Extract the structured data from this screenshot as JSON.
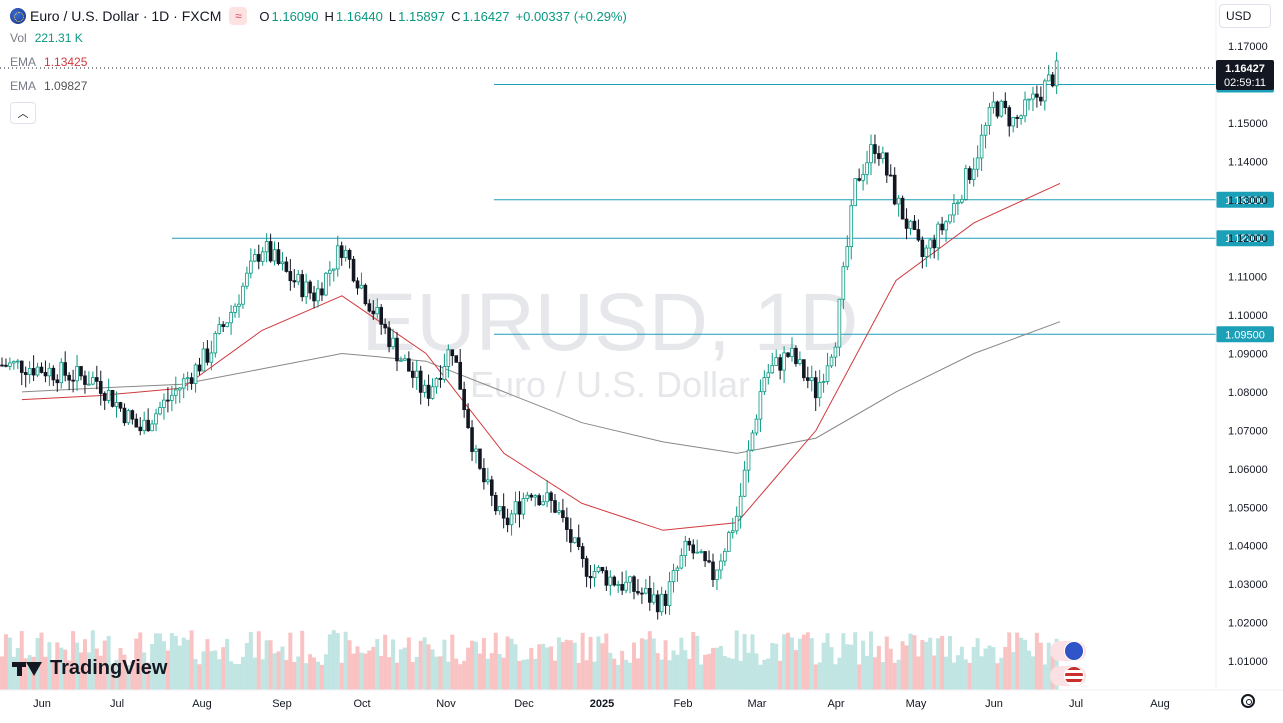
{
  "header": {
    "symbol_title": "Euro / U.S. Dollar · 1D · FXCM",
    "open_label": "O",
    "open": "1.16090",
    "high_label": "H",
    "high": "1.16440",
    "low_label": "L",
    "low": "1.15897",
    "close_label": "C",
    "close": "1.16427",
    "change": "+0.00337 (+0.29%)"
  },
  "indicators": {
    "vol_label": "Vol",
    "vol_value": "221.31 K",
    "ema1_label": "EMA",
    "ema1_value": "1.13425",
    "ema2_label": "EMA",
    "ema2_value": "1.09827"
  },
  "currency_button": "USD",
  "watermark": {
    "line1": "EURUSD, 1D",
    "line2": "Euro / U.S. Dollar"
  },
  "brand": "TradingView",
  "price_label": {
    "value": "1.16427",
    "countdown": "02:59:11"
  },
  "horizontal_levels": [
    {
      "text": "1.16000",
      "value": 1.16,
      "start_month": "Dec"
    },
    {
      "text": "1.13000",
      "value": 1.13,
      "start_month": "Dec"
    },
    {
      "text": "1.12000",
      "value": 1.12,
      "start_month": "Aug"
    },
    {
      "text": "1.09500",
      "value": 1.095,
      "start_month": "Dec"
    }
  ],
  "icons": {
    "symbol": "euro-globe-icon",
    "indicator": "waves-icon",
    "collapse": "chevron-up-icon",
    "settings": "gear-icon",
    "flag_eu": "eu-flag-icon",
    "flag_us": "us-flag-icon"
  },
  "colors": {
    "up": "#089981",
    "down": "#131722",
    "ema_fast": "#d1393e",
    "ema_slow": "#888888",
    "level_line": "#1ba0b8",
    "level_label": "#1ba0b8",
    "price_label": "#131722",
    "volume_up": "#b2dfdb",
    "volume_down": "#f7b4b4"
  },
  "chart_data": {
    "type": "candlestick",
    "timeframe": "1D",
    "y_axis": {
      "ticks": [
        "1.17000",
        "1.16000",
        "1.15000",
        "1.14000",
        "1.13000",
        "1.12000",
        "1.11000",
        "1.10000",
        "1.09000",
        "1.08000",
        "1.07000",
        "1.06000",
        "1.05000",
        "1.04000",
        "1.03000",
        "1.02000",
        "1.01000"
      ],
      "range": [
        1.003,
        1.173
      ]
    },
    "x_axis": {
      "ticks": [
        "Jun",
        "Jul",
        "Aug",
        "Sep",
        "Oct",
        "Nov",
        "Dec",
        "2025",
        "Feb",
        "Mar",
        "Apr",
        "May",
        "Jun",
        "Jul",
        "Aug"
      ]
    },
    "close_path": [
      [
        "Jun",
        1.087
      ],
      [
        "Jul",
        1.083
      ],
      [
        "Jul",
        1.07
      ],
      [
        "Aug",
        1.082
      ],
      [
        "Aug",
        1.09
      ],
      [
        "Aug",
        1.103
      ],
      [
        "Sep",
        1.118
      ],
      [
        "Sep",
        1.11
      ],
      [
        "Sep",
        1.105
      ],
      [
        "Oct",
        1.118
      ],
      [
        "Oct",
        1.103
      ],
      [
        "Oct",
        1.09
      ],
      [
        "Nov",
        1.079
      ],
      [
        "Nov",
        1.092
      ],
      [
        "Nov",
        1.06
      ],
      [
        "Dec",
        1.045
      ],
      [
        "Dec",
        1.055
      ],
      [
        "Dec",
        1.05
      ],
      [
        "2025",
        1.035
      ],
      [
        "2025",
        1.03
      ],
      [
        "Feb",
        1.025
      ],
      [
        "Feb",
        1.04
      ],
      [
        "Feb",
        1.032
      ],
      [
        "Mar",
        1.048
      ],
      [
        "Mar",
        1.084
      ],
      [
        "Mar",
        1.09
      ],
      [
        "Apr",
        1.08
      ],
      [
        "Apr",
        1.095
      ],
      [
        "Apr",
        1.135
      ],
      [
        "Apr",
        1.145
      ],
      [
        "May",
        1.13
      ],
      [
        "May",
        1.115
      ],
      [
        "May",
        1.125
      ],
      [
        "Jun",
        1.14
      ],
      [
        "Jun",
        1.155
      ],
      [
        "Jun",
        1.15
      ],
      [
        "Jun",
        1.16427
      ]
    ],
    "ema_fast_path": [
      [
        "Jun",
        1.078
      ],
      [
        "Jul",
        1.079
      ],
      [
        "Aug",
        1.081
      ],
      [
        "Sep",
        1.096
      ],
      [
        "Oct",
        1.105
      ],
      [
        "Nov",
        1.09
      ],
      [
        "Dec",
        1.064
      ],
      [
        "2025",
        1.051
      ],
      [
        "Feb",
        1.044
      ],
      [
        "Mar",
        1.046
      ],
      [
        "Apr",
        1.07
      ],
      [
        "May",
        1.109
      ],
      [
        "Jun",
        1.124
      ],
      [
        "Jun",
        1.13425
      ]
    ],
    "ema_slow_path": [
      [
        "Jun",
        1.08
      ],
      [
        "Jul",
        1.081
      ],
      [
        "Aug",
        1.082
      ],
      [
        "Sep",
        1.086
      ],
      [
        "Oct",
        1.09
      ],
      [
        "Nov",
        1.088
      ],
      [
        "Dec",
        1.08
      ],
      [
        "2025",
        1.072
      ],
      [
        "Feb",
        1.067
      ],
      [
        "Mar",
        1.064
      ],
      [
        "Apr",
        1.068
      ],
      [
        "May",
        1.08
      ],
      [
        "Jun",
        1.09
      ],
      [
        "Jun",
        1.09827
      ]
    ],
    "current_price": 1.16427
  }
}
